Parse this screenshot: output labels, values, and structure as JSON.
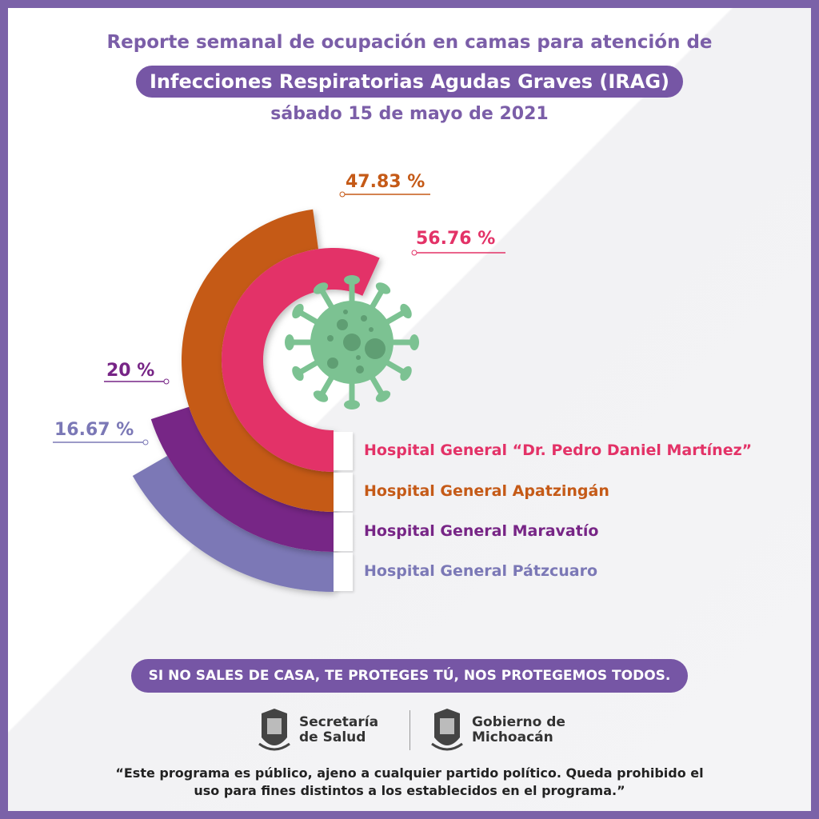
{
  "header": {
    "line1": "Reporte semanal de ocupación en camas para atención de",
    "line2": "Infecciones Respiratorias Agudas Graves (IRAG)",
    "date": "sábado 15 de mayo de 2021"
  },
  "chart_data": {
    "type": "radial-bar",
    "title": "Infecciones Respiratorias Agudas Graves (IRAG)",
    "unit": "%",
    "max": 100,
    "series": [
      {
        "name": "Hospital General “Dr. Pedro Daniel Martínez”",
        "value": 56.76,
        "label": "56.76 %",
        "color": "#e33267"
      },
      {
        "name": "Hospital General Apatzingán",
        "value": 47.83,
        "label": "47.83 %",
        "color": "#c55a17"
      },
      {
        "name": "Hospital General Maravatío",
        "value": 20,
        "label": "20 %",
        "color": "#772586"
      },
      {
        "name": "Hospital General Pátzcuaro",
        "value": 16.67,
        "label": "16.67 %",
        "color": "#7b78b6"
      }
    ]
  },
  "icons": {
    "center": "virus-icon"
  },
  "footer": {
    "slogan": "SI NO SALES DE CASA, TE PROTEGES TÚ, NOS PROTEGEMOS TODOS.",
    "logo1": [
      "Secretaría",
      "de Salud"
    ],
    "logo2": [
      "Gobierno de",
      "Michoacán"
    ],
    "disclaimer1": "“Este programa es público, ajeno a cualquier partido político. Queda prohibido el",
    "disclaimer2": "uso para fines distintos a los establecidos en el programa.”"
  },
  "colors": {
    "frame": "#7b62a8",
    "accent": "#7656a5"
  }
}
